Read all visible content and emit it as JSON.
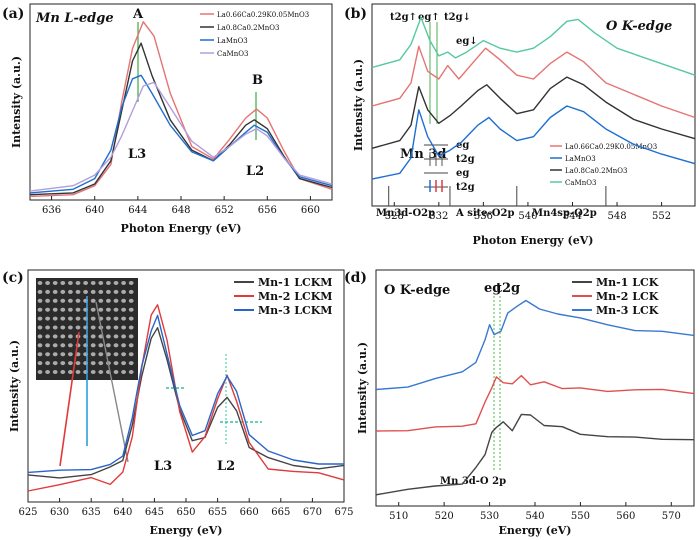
{
  "panels": [
    {
      "letter": "(a)",
      "edge_label": "Mn L-edge",
      "xlabel": "Photon Energy (eV)",
      "ylabel": "Intensity (a.u.)",
      "annotations": [
        "A",
        "B",
        "L3",
        "L2"
      ]
    },
    {
      "letter": "(b)",
      "edge_label": "O K-edge",
      "xlabel": "Photon Energy (eV)",
      "ylabel": "Intensity (a.u.)",
      "peak_labels": [
        "t2g↑",
        "eg↑",
        "t2g↓",
        "eg↓"
      ],
      "mn3d_label": "Mn 3d",
      "orbital_labels": [
        "eg",
        "t2g",
        "eg",
        "t2g"
      ],
      "region_labels": [
        "Mn3d-O2p",
        "A site-O2p",
        "Mn4sp-O2p"
      ]
    },
    {
      "letter": "(c)",
      "xlabel": "Energy (eV)",
      "ylabel": "Intensity (a.u.)",
      "annotations": [
        "L3",
        "L2"
      ]
    },
    {
      "letter": "(d)",
      "edge_label": "O K-edge",
      "xlabel": "Energy (eV)",
      "ylabel": "Intensity (a.u.)",
      "annotations": [
        "eg",
        "t2g",
        "Mn 3d-O 2p"
      ]
    }
  ],
  "chart_data": [
    {
      "type": "line",
      "panel": "a",
      "xlabel": "Photon Energy (eV)",
      "ylabel": "Intensity (a.u.)",
      "xlim": [
        634,
        662
      ],
      "xticks": [
        636,
        640,
        644,
        648,
        652,
        656,
        660
      ],
      "series": [
        {
          "name": "La0.66Ca0.29K0.05MnO3",
          "color": "#e57373",
          "x": [
            634,
            638,
            640,
            641.5,
            642.5,
            643.5,
            644.5,
            645.5,
            647,
            649,
            651,
            652.5,
            654,
            655,
            656,
            657.5,
            659,
            662
          ],
          "y": [
            0.02,
            0.03,
            0.08,
            0.2,
            0.55,
            0.85,
            1.0,
            0.92,
            0.6,
            0.3,
            0.23,
            0.34,
            0.46,
            0.51,
            0.46,
            0.28,
            0.12,
            0.06
          ]
        },
        {
          "name": "La0.8Ca0.2MnO3",
          "color": "#333333",
          "x": [
            634,
            638,
            640,
            641.5,
            642.5,
            643.5,
            644.3,
            645.3,
            647,
            649,
            651,
            652.5,
            654,
            654.8,
            656,
            657.5,
            659,
            662
          ],
          "y": [
            0.03,
            0.04,
            0.09,
            0.22,
            0.5,
            0.78,
            0.88,
            0.7,
            0.45,
            0.28,
            0.22,
            0.31,
            0.42,
            0.45,
            0.4,
            0.25,
            0.12,
            0.07
          ]
        },
        {
          "name": "LaMnO3",
          "color": "#1e6fd0",
          "x": [
            634,
            638,
            640,
            641.5,
            642.5,
            643.5,
            644.3,
            645.3,
            647,
            649,
            651,
            652.5,
            654,
            654.8,
            656,
            657.5,
            659,
            662
          ],
          "y": [
            0.04,
            0.06,
            0.12,
            0.28,
            0.52,
            0.68,
            0.7,
            0.6,
            0.42,
            0.27,
            0.22,
            0.3,
            0.38,
            0.42,
            0.38,
            0.24,
            0.13,
            0.08
          ]
        },
        {
          "name": "CaMnO3",
          "color": "#b39ddb",
          "x": [
            634,
            638,
            640,
            641.5,
            642.5,
            643.5,
            644.5,
            645.5,
            647,
            649,
            651,
            652.5,
            654,
            655,
            656,
            657.5,
            659,
            662
          ],
          "y": [
            0.05,
            0.08,
            0.14,
            0.24,
            0.36,
            0.5,
            0.64,
            0.66,
            0.52,
            0.33,
            0.24,
            0.3,
            0.37,
            0.4,
            0.36,
            0.24,
            0.14,
            0.09
          ]
        }
      ]
    },
    {
      "type": "line",
      "panel": "b",
      "xlabel": "Photon Energy (eV)",
      "ylabel": "Intensity (a.u.)",
      "xlim": [
        526,
        555
      ],
      "xticks": [
        528,
        532,
        536,
        540,
        544,
        548,
        552
      ],
      "series": [
        {
          "name": "La0.66Ca0.29K0.05MnO3",
          "color": "#e57373",
          "x": [
            526,
            528.5,
            529.5,
            530.2,
            531,
            532,
            532.8,
            533.8,
            535,
            536.2,
            537.5,
            539,
            540.5,
            542,
            543.5,
            545,
            547,
            549.5,
            552,
            555
          ],
          "y": [
            0.52,
            0.56,
            0.64,
            0.83,
            0.7,
            0.66,
            0.73,
            0.66,
            0.74,
            0.82,
            0.76,
            0.68,
            0.66,
            0.74,
            0.8,
            0.75,
            0.64,
            0.58,
            0.52,
            0.46
          ]
        },
        {
          "name": "LaMnO3",
          "color": "#1e6fd0",
          "x": [
            526,
            528.5,
            529.5,
            530.2,
            531,
            532,
            533,
            534,
            535.5,
            536.5,
            537.5,
            539,
            540.5,
            542,
            543.5,
            545,
            547,
            549.5,
            552,
            555
          ],
          "y": [
            0.14,
            0.17,
            0.25,
            0.5,
            0.36,
            0.26,
            0.29,
            0.33,
            0.42,
            0.46,
            0.4,
            0.34,
            0.36,
            0.46,
            0.52,
            0.49,
            0.4,
            0.32,
            0.27,
            0.22
          ]
        },
        {
          "name": "La0.8Ca0.2MnO3",
          "color": "#333333",
          "x": [
            526,
            528.5,
            529.5,
            530.2,
            531,
            532,
            533,
            534,
            535.5,
            536.3,
            537.5,
            539,
            540.5,
            542,
            543.5,
            545,
            547,
            549.5,
            552,
            555
          ],
          "y": [
            0.3,
            0.34,
            0.42,
            0.62,
            0.5,
            0.43,
            0.47,
            0.52,
            0.6,
            0.63,
            0.56,
            0.48,
            0.5,
            0.61,
            0.67,
            0.63,
            0.54,
            0.45,
            0.4,
            0.35
          ]
        },
        {
          "name": "CaMnO3",
          "color": "#55c9a0",
          "x": [
            526,
            528.5,
            529.5,
            530.4,
            531.2,
            532,
            532.8,
            533.5,
            534.5,
            536,
            537.5,
            539,
            540.5,
            542,
            543.5,
            544.5,
            546,
            548,
            551,
            555
          ],
          "y": [
            0.72,
            0.76,
            0.84,
            0.98,
            0.86,
            0.78,
            0.8,
            0.77,
            0.8,
            0.86,
            0.82,
            0.8,
            0.82,
            0.88,
            0.96,
            0.97,
            0.9,
            0.82,
            0.76,
            0.68
          ]
        }
      ],
      "region_dividers": [
        527.5,
        533,
        539,
        547
      ]
    },
    {
      "type": "line",
      "panel": "c",
      "xlabel": "Energy (eV)",
      "ylabel": "Intensity (a.u.)",
      "xlim": [
        625,
        675
      ],
      "xticks": [
        625,
        630,
        635,
        640,
        645,
        650,
        655,
        660,
        665,
        670,
        675
      ],
      "series": [
        {
          "name": "Mn-1 LCKM",
          "color": "#444444",
          "x": [
            625,
            630,
            635,
            638,
            640,
            641.5,
            643,
            644.5,
            645.5,
            647,
            649,
            651,
            653,
            655,
            656.5,
            658,
            660,
            663,
            667,
            671,
            675
          ],
          "y": [
            0.1,
            0.11,
            0.12,
            0.13,
            0.17,
            0.3,
            0.52,
            0.68,
            0.72,
            0.6,
            0.38,
            0.24,
            0.27,
            0.38,
            0.44,
            0.38,
            0.24,
            0.17,
            0.16,
            0.15,
            0.14
          ]
        },
        {
          "name": "Mn-2 LCKM",
          "color": "#e03a3a",
          "x": [
            625,
            630,
            635,
            638,
            640,
            641.5,
            643,
            644.5,
            645.5,
            647,
            649,
            651,
            653,
            655,
            656.5,
            658,
            660,
            663,
            667,
            671,
            675
          ],
          "y": [
            0.06,
            0.07,
            0.08,
            0.09,
            0.12,
            0.27,
            0.56,
            0.76,
            0.8,
            0.66,
            0.38,
            0.22,
            0.26,
            0.42,
            0.5,
            0.42,
            0.24,
            0.14,
            0.12,
            0.12,
            0.11
          ]
        },
        {
          "name": "Mn-3 LCKM",
          "color": "#2a64c8",
          "x": [
            625,
            630,
            635,
            638,
            640,
            641.5,
            643,
            644.5,
            645.5,
            647,
            649,
            651,
            653,
            655,
            656.5,
            658,
            660,
            663,
            667,
            671,
            675
          ],
          "y": [
            0.12,
            0.13,
            0.14,
            0.15,
            0.2,
            0.33,
            0.55,
            0.72,
            0.76,
            0.62,
            0.4,
            0.27,
            0.31,
            0.45,
            0.52,
            0.45,
            0.29,
            0.19,
            0.17,
            0.16,
            0.15
          ]
        }
      ]
    },
    {
      "type": "line",
      "panel": "d",
      "xlabel": "Energy (eV)",
      "ylabel": "Intensity (a.u.)",
      "xlim": [
        505,
        575
      ],
      "xticks": [
        510,
        520,
        530,
        540,
        550,
        560,
        570
      ],
      "series": [
        {
          "name": "Mn-1 LCK",
          "color": "#444444",
          "x": [
            505,
            512,
            518,
            524,
            527,
            529,
            530.5,
            531.5,
            533,
            535,
            537,
            539,
            542,
            546,
            550,
            556,
            562,
            568,
            575
          ],
          "y": [
            0.06,
            0.08,
            0.1,
            0.12,
            0.16,
            0.24,
            0.34,
            0.36,
            0.38,
            0.36,
            0.44,
            0.42,
            0.38,
            0.36,
            0.34,
            0.33,
            0.32,
            0.31,
            0.3
          ]
        },
        {
          "name": "Mn-2 LCK",
          "color": "#e05050",
          "x": [
            505,
            512,
            518,
            524,
            527,
            529,
            530.5,
            531.5,
            533,
            535,
            537,
            539,
            542,
            546,
            550,
            556,
            562,
            568,
            575
          ],
          "y": [
            0.33,
            0.34,
            0.35,
            0.36,
            0.39,
            0.47,
            0.56,
            0.6,
            0.58,
            0.56,
            0.6,
            0.58,
            0.56,
            0.55,
            0.55,
            0.54,
            0.54,
            0.53,
            0.53
          ]
        },
        {
          "name": "Mn-3 LCK",
          "color": "#3a78d0",
          "x": [
            505,
            512,
            518,
            524,
            527,
            529,
            530,
            531,
            532.5,
            534,
            536,
            538,
            541,
            545,
            550,
            556,
            562,
            568,
            575
          ],
          "y": [
            0.55,
            0.57,
            0.6,
            0.63,
            0.66,
            0.78,
            0.86,
            0.8,
            0.82,
            0.9,
            0.95,
            0.96,
            0.92,
            0.89,
            0.87,
            0.85,
            0.83,
            0.82,
            0.8
          ]
        }
      ]
    }
  ]
}
